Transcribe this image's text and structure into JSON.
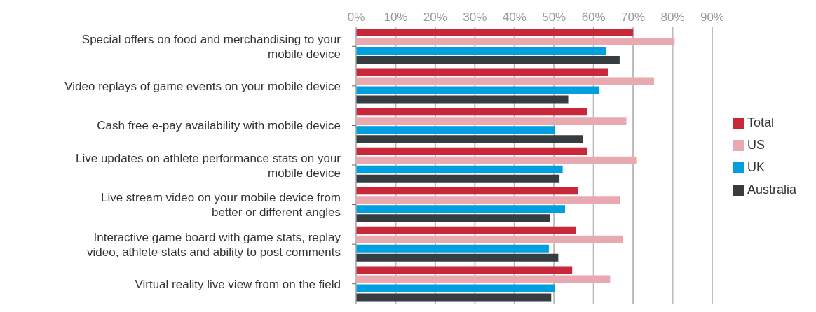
{
  "chart_data": {
    "type": "bar",
    "orientation": "horizontal",
    "categories": [
      "Special offers on food and merchandising to your mobile device",
      "Video replays of game events on your mobile device",
      "Cash free e-pay availability with mobile device",
      "Live updates on athlete performance stats on your mobile device",
      "Live stream video on your mobile device from better or different angles",
      "Interactive game board with game stats, replay video, athlete stats and ability to post comments",
      "Virtual reality live view from on the field"
    ],
    "series": [
      {
        "name": "Total",
        "color": "#c8283a",
        "values": [
          70,
          63.6,
          58.4,
          58.4,
          56,
          55.6,
          54.6
        ]
      },
      {
        "name": "US",
        "color": "#e8aab0",
        "values": [
          80.5,
          75.3,
          68.3,
          70.8,
          66.7,
          67.4,
          64.2
        ]
      },
      {
        "name": "UK",
        "color": "#009fe0",
        "values": [
          63.2,
          61.5,
          50.2,
          52.2,
          52.8,
          48.7,
          50.2
        ]
      },
      {
        "name": "Australia",
        "color": "#363c40",
        "values": [
          66.6,
          53.6,
          57.4,
          51.4,
          49,
          51.1,
          49.3
        ]
      }
    ],
    "xlim": [
      0,
      90
    ],
    "xticks": [
      {
        "value": 0,
        "label": "0%"
      },
      {
        "value": 10,
        "label": "10%"
      },
      {
        "value": 20,
        "label": "20%"
      },
      {
        "value": 30,
        "label": "30%"
      },
      {
        "value": 40,
        "label": "40%"
      },
      {
        "value": 50,
        "label": "50%"
      },
      {
        "value": 60,
        "label": "60%"
      },
      {
        "value": 70,
        "label": "70%"
      },
      {
        "value": 80,
        "label": "80%"
      },
      {
        "value": 90,
        "label": "90%"
      }
    ],
    "grid": "x",
    "legend": "right"
  }
}
